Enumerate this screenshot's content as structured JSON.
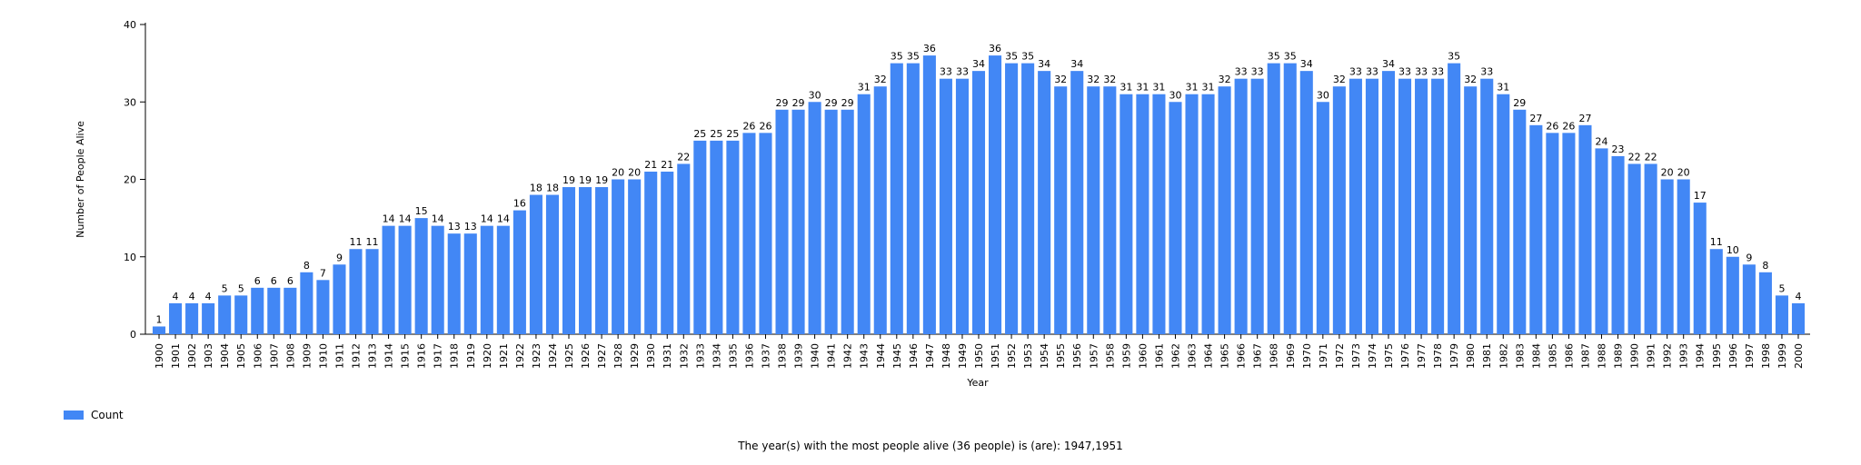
{
  "chart_data": {
    "type": "bar",
    "xlabel": "Year",
    "ylabel": "Number of People Alive",
    "ylim": [
      0,
      40
    ],
    "yticks": [
      0,
      10,
      20,
      30,
      40
    ],
    "grid": false,
    "legend_position": "bottom-left",
    "bar_color": "#4287f5",
    "series": [
      {
        "name": "Count"
      }
    ],
    "categories": [
      "1900",
      "1901",
      "1902",
      "1903",
      "1904",
      "1905",
      "1906",
      "1907",
      "1908",
      "1909",
      "1910",
      "1911",
      "1912",
      "1913",
      "1914",
      "1915",
      "1916",
      "1917",
      "1918",
      "1919",
      "1920",
      "1921",
      "1922",
      "1923",
      "1924",
      "1925",
      "1926",
      "1927",
      "1928",
      "1929",
      "1930",
      "1931",
      "1932",
      "1933",
      "1934",
      "1935",
      "1936",
      "1937",
      "1938",
      "1939",
      "1940",
      "1941",
      "1942",
      "1943",
      "1944",
      "1945",
      "1946",
      "1947",
      "1948",
      "1949",
      "1950",
      "1951",
      "1952",
      "1953",
      "1954",
      "1955",
      "1956",
      "1957",
      "1958",
      "1959",
      "1960",
      "1961",
      "1962",
      "1963",
      "1964",
      "1965",
      "1966",
      "1967",
      "1968",
      "1969",
      "1970",
      "1971",
      "1972",
      "1973",
      "1974",
      "1975",
      "1976",
      "1977",
      "1978",
      "1979",
      "1980",
      "1981",
      "1982",
      "1983",
      "1984",
      "1985",
      "1986",
      "1987",
      "1988",
      "1989",
      "1990",
      "1991",
      "1992",
      "1993",
      "1994",
      "1995",
      "1996",
      "1997",
      "1998",
      "1999",
      "2000"
    ],
    "values": [
      1,
      4,
      4,
      4,
      5,
      5,
      6,
      6,
      6,
      8,
      7,
      9,
      11,
      11,
      14,
      14,
      15,
      14,
      13,
      13,
      14,
      14,
      16,
      18,
      18,
      19,
      19,
      19,
      20,
      20,
      21,
      21,
      22,
      25,
      25,
      25,
      26,
      26,
      29,
      29,
      30,
      29,
      29,
      31,
      32,
      35,
      35,
      36,
      33,
      33,
      34,
      36,
      35,
      35,
      34,
      32,
      34,
      32,
      32,
      31,
      31,
      31,
      30,
      31,
      31,
      32,
      33,
      33,
      35,
      35,
      34,
      30,
      32,
      33,
      33,
      34,
      33,
      33,
      33,
      35,
      32,
      33,
      31,
      29,
      27,
      26,
      26,
      27,
      24,
      23,
      22,
      22,
      20,
      20,
      17,
      11,
      10,
      9,
      8,
      5,
      4
    ]
  },
  "caption": "The year(s) with the most people alive (36 people) is (are): 1947,1951"
}
